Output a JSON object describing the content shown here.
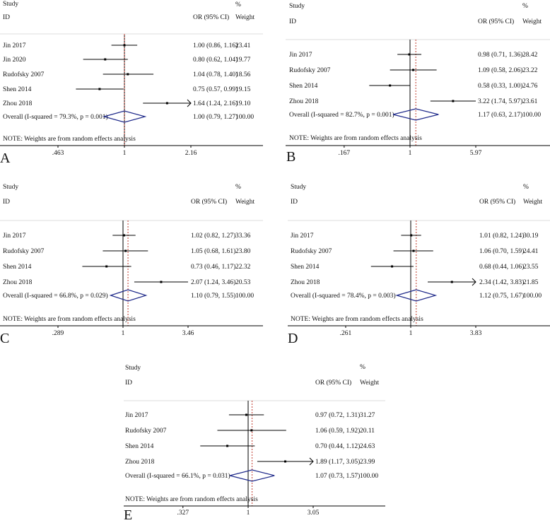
{
  "headers": {
    "study": "Study",
    "id": "ID",
    "or": "OR (95% CI)",
    "pct": "%",
    "weight": "Weight"
  },
  "note": "NOTE: Weights are from random effects analysis",
  "colors": {
    "ci": "#000000",
    "diamond": "#1f2a8a",
    "refline": "#c0392b",
    "separator": "#dddddd"
  },
  "chart_data": [
    {
      "type": "forest",
      "panel": "A",
      "scale": "log",
      "ticks": [
        ".463",
        "1",
        "2.16"
      ],
      "tick_values": [
        0.463,
        1,
        2.16
      ],
      "studies": [
        {
          "id": "Jin 2017",
          "or": 1.0,
          "lo": 0.86,
          "hi": 1.16,
          "label": "1.00 (0.86, 1.16)",
          "weight": "23.41"
        },
        {
          "id": "Jin 2020",
          "or": 0.8,
          "lo": 0.62,
          "hi": 1.04,
          "label": "0.80 (0.62, 1.04)",
          "weight": "19.77"
        },
        {
          "id": "Rudofsky 2007",
          "or": 1.04,
          "lo": 0.78,
          "hi": 1.4,
          "label": "1.04 (0.78, 1.40)",
          "weight": "18.56"
        },
        {
          "id": "Shen 2014",
          "or": 0.75,
          "lo": 0.57,
          "hi": 0.99,
          "label": "0.75 (0.57, 0.99)",
          "weight": "19.15"
        },
        {
          "id": "Zhou 2018",
          "or": 1.64,
          "lo": 1.24,
          "hi": 2.16,
          "label": "1.64 (1.24, 2.16)",
          "weight": "19.10",
          "arrow": true
        }
      ],
      "overall": {
        "text": "Overall  (I-squared = 79.3%, p = 0.001)",
        "or": 1.0,
        "lo": 0.79,
        "hi": 1.27,
        "label": "1.00 (0.79, 1.27)",
        "weight": "100.00"
      }
    },
    {
      "type": "forest",
      "panel": "B",
      "scale": "log",
      "ticks": [
        ".167",
        "1",
        "5.97"
      ],
      "tick_values": [
        0.167,
        1,
        5.97
      ],
      "studies": [
        {
          "id": "Jin 2017",
          "or": 0.98,
          "lo": 0.71,
          "hi": 1.36,
          "label": "0.98 (0.71, 1.36)",
          "weight": "28.42"
        },
        {
          "id": "Rudofsky 2007",
          "or": 1.09,
          "lo": 0.58,
          "hi": 2.06,
          "label": "1.09 (0.58, 2.06)",
          "weight": "23.22"
        },
        {
          "id": "Shen 2014",
          "or": 0.58,
          "lo": 0.33,
          "hi": 1.0,
          "label": "0.58 (0.33, 1.00)",
          "weight": "24.76"
        },
        {
          "id": "Zhou 2018",
          "or": 3.22,
          "lo": 1.74,
          "hi": 5.97,
          "label": "3.22 (1.74, 5.97)",
          "weight": "23.61"
        }
      ],
      "overall": {
        "text": "Overall  (I-squared = 82.7%, p = 0.001)",
        "or": 1.17,
        "lo": 0.63,
        "hi": 2.17,
        "label": "1.17 (0.63, 2.17)",
        "weight": "100.00"
      }
    },
    {
      "type": "forest",
      "panel": "C",
      "scale": "log",
      "ticks": [
        ".289",
        "1",
        "3.46"
      ],
      "tick_values": [
        0.289,
        1,
        3.46
      ],
      "studies": [
        {
          "id": "Jin 2017",
          "or": 1.02,
          "lo": 0.82,
          "hi": 1.27,
          "label": "1.02 (0.82, 1.27)",
          "weight": "33.36"
        },
        {
          "id": "Rudofsky 2007",
          "or": 1.05,
          "lo": 0.68,
          "hi": 1.61,
          "label": "1.05 (0.68, 1.61)",
          "weight": "23.80"
        },
        {
          "id": "Shen 2014",
          "or": 0.73,
          "lo": 0.46,
          "hi": 1.17,
          "label": "0.73 (0.46, 1.17)",
          "weight": "22.32"
        },
        {
          "id": "Zhou 2018",
          "or": 2.07,
          "lo": 1.24,
          "hi": 3.46,
          "label": "2.07 (1.24, 3.46)",
          "weight": "20.53"
        }
      ],
      "overall": {
        "text": "Overall  (I-squared = 66.8%, p = 0.029)",
        "or": 1.1,
        "lo": 0.79,
        "hi": 1.55,
        "label": "1.10 (0.79, 1.55)",
        "weight": "100.00"
      }
    },
    {
      "type": "forest",
      "panel": "D",
      "scale": "log",
      "ticks": [
        ".261",
        "1",
        "3.83"
      ],
      "tick_values": [
        0.261,
        1,
        3.83
      ],
      "studies": [
        {
          "id": "Jin 2017",
          "or": 1.01,
          "lo": 0.82,
          "hi": 1.24,
          "label": "1.01 (0.82, 1.24)",
          "weight": "30.19"
        },
        {
          "id": "Rudofsky 2007",
          "or": 1.06,
          "lo": 0.7,
          "hi": 1.59,
          "label": "1.06 (0.70, 1.59)",
          "weight": "24.41"
        },
        {
          "id": "Shen 2014",
          "or": 0.68,
          "lo": 0.44,
          "hi": 1.06,
          "label": "0.68 (0.44, 1.06)",
          "weight": "23.55"
        },
        {
          "id": "Zhou 2018",
          "or": 2.34,
          "lo": 1.42,
          "hi": 3.83,
          "label": "2.34 (1.42, 3.83)",
          "weight": "21.85",
          "arrow": true
        }
      ],
      "overall": {
        "text": "Overall  (I-squared = 78.4%, p = 0.003)",
        "or": 1.12,
        "lo": 0.75,
        "hi": 1.67,
        "label": "1.12 (0.75, 1.67)",
        "weight": "100.00"
      }
    },
    {
      "type": "forest",
      "panel": "E",
      "scale": "log",
      "ticks": [
        ".327",
        "1",
        "3.05"
      ],
      "tick_values": [
        0.327,
        1,
        3.05
      ],
      "studies": [
        {
          "id": "Jin 2017",
          "or": 0.97,
          "lo": 0.72,
          "hi": 1.31,
          "label": "0.97 (0.72, 1.31)",
          "weight": "31.27"
        },
        {
          "id": "Rudofsky 2007",
          "or": 1.06,
          "lo": 0.59,
          "hi": 1.92,
          "label": "1.06 (0.59, 1.92)",
          "weight": "20.11"
        },
        {
          "id": "Shen 2014",
          "or": 0.7,
          "lo": 0.44,
          "hi": 1.12,
          "label": "0.70 (0.44, 1.12)",
          "weight": "24.63"
        },
        {
          "id": "Zhou 2018",
          "or": 1.89,
          "lo": 1.17,
          "hi": 3.05,
          "label": "1.89 (1.17, 3.05)",
          "weight": "23.99",
          "arrow": true
        }
      ],
      "overall": {
        "text": "Overall  (I-squared = 66.1%, p = 0.031)",
        "or": 1.07,
        "lo": 0.73,
        "hi": 1.57,
        "label": "1.07 (0.73, 1.57)",
        "weight": "100.00"
      }
    }
  ]
}
